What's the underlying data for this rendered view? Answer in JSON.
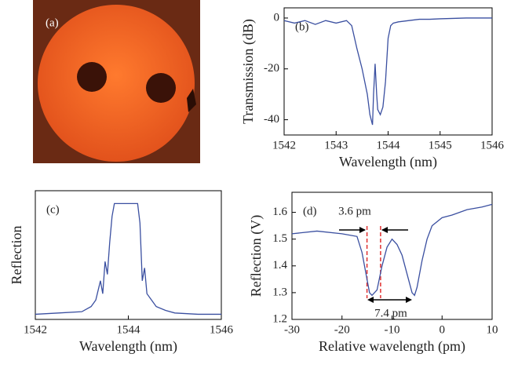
{
  "chart_data": [
    {
      "type": "image",
      "panel_label": "(a)"
    },
    {
      "type": "line",
      "panel_label": "(b)",
      "xlabel": "Wavelength (nm)",
      "ylabel": "Transmission (dB)",
      "x": [
        1542,
        1542.2,
        1542.4,
        1542.6,
        1542.8,
        1543.0,
        1543.2,
        1543.3,
        1543.4,
        1543.5,
        1543.6,
        1543.65,
        1543.7,
        1543.72,
        1543.75,
        1543.78,
        1543.8,
        1543.85,
        1543.9,
        1543.95,
        1544.0,
        1544.05,
        1544.1,
        1544.2,
        1544.4,
        1544.6,
        1544.8,
        1545.0,
        1545.5,
        1546
      ],
      "series": [
        {
          "color": "#3a4fa0",
          "values": [
            -1,
            -2,
            -1,
            -2.5,
            -1,
            -2,
            -1,
            -3,
            -12,
            -20,
            -30,
            -38,
            -42,
            -30,
            -18,
            -30,
            -36,
            -38,
            -35,
            -25,
            -8,
            -3,
            -2,
            -1.5,
            -1,
            -0.5,
            -0.5,
            -0.3,
            0,
            0
          ]
        }
      ],
      "xlim": [
        1542,
        1546
      ],
      "xticks": [
        1542,
        1543,
        1544,
        1545,
        1546
      ],
      "ylim": [
        -46,
        4
      ],
      "yticks": [
        -40,
        -20,
        0
      ]
    },
    {
      "type": "line",
      "panel_label": "(c)",
      "xlabel": "Wavelength (nm)",
      "ylabel": "Reflection",
      "x": [
        1542,
        1542.5,
        1543,
        1543.2,
        1543.3,
        1543.4,
        1543.45,
        1543.5,
        1543.55,
        1543.6,
        1543.65,
        1543.7,
        1543.8,
        1544.0,
        1544.2,
        1544.25,
        1544.3,
        1544.35,
        1544.4,
        1544.5,
        1544.6,
        1544.8,
        1545,
        1545.5,
        1546
      ],
      "series": [
        {
          "color": "#3a4fa0",
          "values": [
            0.04,
            0.05,
            0.06,
            0.1,
            0.15,
            0.3,
            0.2,
            0.45,
            0.35,
            0.6,
            0.8,
            0.9,
            0.9,
            0.9,
            0.9,
            0.75,
            0.3,
            0.4,
            0.2,
            0.15,
            0.1,
            0.07,
            0.05,
            0.04,
            0.04
          ]
        }
      ],
      "xlim": [
        1542,
        1546
      ],
      "xticks": [
        1542,
        1544,
        1546
      ],
      "ylim": [
        0,
        1
      ]
    },
    {
      "type": "line",
      "panel_label": "(d)",
      "xlabel": "Relative wavelength (pm)",
      "ylabel": "Reflection (V)",
      "x": [
        -30,
        -25,
        -20,
        -17,
        -16,
        -15,
        -14.5,
        -14,
        -13,
        -12,
        -11,
        -10,
        -9,
        -8,
        -7,
        -6,
        -5.5,
        -5,
        -4,
        -3,
        -2,
        0,
        2,
        5,
        8,
        10
      ],
      "series": [
        {
          "color": "#3a4fa0",
          "values": [
            1.52,
            1.53,
            1.52,
            1.51,
            1.45,
            1.35,
            1.3,
            1.29,
            1.31,
            1.4,
            1.47,
            1.5,
            1.48,
            1.44,
            1.37,
            1.3,
            1.29,
            1.32,
            1.42,
            1.5,
            1.55,
            1.58,
            1.59,
            1.61,
            1.62,
            1.63
          ]
        }
      ],
      "xlim": [
        -30,
        10
      ],
      "xticks": [
        -30,
        -20,
        -10,
        0,
        10
      ],
      "ylim": [
        1.2,
        1.675
      ],
      "yticks": [
        1.2,
        1.3,
        1.4,
        1.5,
        1.6
      ],
      "annotations": [
        "3.6 pm",
        "7.4 pm"
      ]
    }
  ]
}
